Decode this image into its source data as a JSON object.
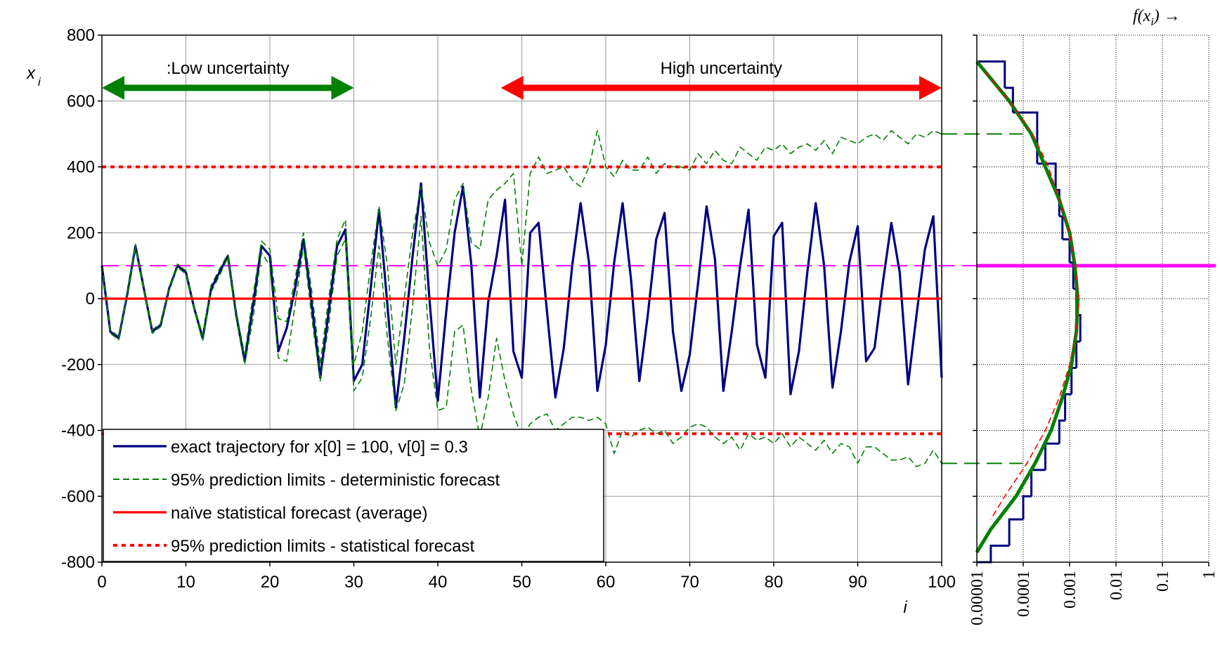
{
  "chart_data": [
    {
      "type": "line",
      "x": [
        0,
        1,
        2,
        3,
        4,
        5,
        6,
        7,
        8,
        9,
        10,
        11,
        12,
        13,
        14,
        15,
        16,
        17,
        18,
        19,
        20,
        21,
        22,
        23,
        24,
        25,
        26,
        27,
        28,
        29,
        30,
        31,
        32,
        33,
        34,
        35,
        36,
        37,
        38,
        39,
        40,
        41,
        42,
        43,
        44,
        45,
        46,
        47,
        48,
        49,
        50,
        51,
        52,
        53,
        54,
        55,
        56,
        57,
        58,
        59,
        60,
        61,
        62,
        63,
        64,
        65,
        66,
        67,
        68,
        69,
        70,
        71,
        72,
        73,
        74,
        75,
        76,
        77,
        78,
        79,
        80,
        81,
        82,
        83,
        84,
        85,
        86,
        87,
        88,
        89,
        90,
        91,
        92,
        93,
        94,
        95,
        96,
        97,
        98,
        99,
        100
      ],
      "xlim": [
        0,
        100
      ],
      "xticks": [
        0,
        10,
        20,
        30,
        40,
        50,
        60,
        70,
        80,
        90,
        100
      ],
      "ylim": [
        -800,
        800
      ],
      "yticks": [
        -800,
        -600,
        -400,
        -200,
        0,
        200,
        400,
        600,
        800
      ],
      "grid": true,
      "legend": "lower left",
      "x_label": "i",
      "y_label": {
        "base": "x",
        "sub": "i"
      },
      "series": [
        {
          "name": "exact trajectory for x[0] = 100, v[0] = 0.3",
          "color": "#000080",
          "values": [
            100,
            -100,
            -120,
            10,
            160,
            30,
            -100,
            -80,
            30,
            100,
            80,
            -30,
            -120,
            30,
            80,
            130,
            -50,
            -190,
            -20,
            160,
            130,
            -160,
            -90,
            30,
            180,
            -20,
            -240,
            -40,
            160,
            210,
            -250,
            -200,
            30,
            270,
            -20,
            -330,
            -120,
            130,
            350,
            0,
            -310,
            -40,
            200,
            340,
            100,
            -300,
            -10,
            130,
            300,
            -160,
            -240,
            200,
            230,
            -40,
            -300,
            -150,
            100,
            290,
            110,
            -280,
            -140,
            110,
            290,
            60,
            -250,
            -50,
            180,
            260,
            -100,
            -280,
            -170,
            50,
            280,
            120,
            -280,
            -100,
            100,
            270,
            -140,
            -240,
            190,
            230,
            -290,
            -160,
            80,
            290,
            100,
            -270,
            -100,
            110,
            220,
            -190,
            -150,
            50,
            230,
            80,
            -260,
            -50,
            150,
            250,
            -240
          ]
        },
        {
          "name": "95% prediction limits - deterministic forecast",
          "color": "#008000",
          "dash": "dashed",
          "values": [
            100,
            -95,
            -115,
            15,
            165,
            35,
            -95,
            -75,
            35,
            105,
            85,
            -25,
            -110,
            40,
            90,
            135,
            -40,
            -170,
            10,
            175,
            150,
            -60,
            -70,
            60,
            200,
            20,
            -200,
            0,
            180,
            240,
            -200,
            -100,
            100,
            280,
            100,
            -200,
            0,
            200,
            340,
            170,
            100,
            150,
            300,
            350,
            170,
            150,
            300,
            330,
            350,
            380,
            100,
            380,
            430,
            380,
            390,
            400,
            360,
            340,
            400,
            510,
            400,
            370,
            420,
            390,
            390,
            430,
            380,
            410,
            400,
            400,
            390,
            440,
            410,
            450,
            420,
            410,
            460,
            440,
            420,
            460,
            450,
            470,
            440,
            460,
            470,
            450,
            480,
            440,
            490,
            480,
            470,
            490,
            500,
            480,
            510,
            490,
            470,
            500,
            490,
            510,
            500
          ],
          "values_lower": [
            100,
            -105,
            -125,
            5,
            155,
            25,
            -105,
            -85,
            25,
            95,
            75,
            -35,
            -130,
            20,
            70,
            125,
            -60,
            -200,
            -60,
            140,
            100,
            -180,
            -190,
            -20,
            160,
            -60,
            -250,
            -80,
            130,
            180,
            -280,
            -240,
            -60,
            160,
            -120,
            -340,
            -260,
            -20,
            250,
            -150,
            -340,
            -330,
            -100,
            -80,
            -280,
            -420,
            -300,
            -120,
            -250,
            -350,
            -420,
            -380,
            -360,
            -350,
            -400,
            -380,
            -360,
            -360,
            -370,
            -360,
            -380,
            -470,
            -400,
            -420,
            -400,
            -390,
            -410,
            -400,
            -440,
            -420,
            -390,
            -380,
            -390,
            -420,
            -440,
            -420,
            -460,
            -410,
            -430,
            -420,
            -440,
            -410,
            -450,
            -420,
            -440,
            -460,
            -430,
            -470,
            -440,
            -450,
            -500,
            -450,
            -450,
            -470,
            -490,
            -490,
            -480,
            -510,
            -500,
            -460,
            -500
          ]
        },
        {
          "name": "naïve statistical forecast (average)",
          "color": "#ff0000",
          "x": [
            0,
            100
          ],
          "values": [
            0,
            0
          ]
        },
        {
          "name": "95% prediction limits - statistical forecast",
          "color": "#ff0000",
          "dash": "dotted",
          "x": [
            0,
            100
          ],
          "values": [
            400,
            400
          ],
          "values_lower": [
            -410,
            -410
          ]
        }
      ],
      "reference_line": {
        "value": 100,
        "color": "#ff00ff"
      },
      "annotations": [
        {
          "text": ":Low uncertainty",
          "x": [
            0,
            30
          ],
          "y": 640,
          "color": "#008000"
        },
        {
          "text": "High uncertainty",
          "x": [
            47.5,
            100
          ],
          "y": 640,
          "color": "#ff0000"
        }
      ]
    },
    {
      "type": "histogram",
      "xscale": "log",
      "xlim": [
        1e-05,
        1
      ],
      "xticks": [
        1e-05,
        0.0001,
        0.001,
        0.01,
        0.1,
        1
      ],
      "ylim": [
        -800,
        800
      ],
      "x_label": {
        "pre": "f(x",
        "sub": "i",
        "post": ") →"
      },
      "color": "#000080",
      "bins": [
        720,
        640,
        565,
        490,
        410,
        330,
        250,
        180,
        110,
        30,
        -50,
        -130,
        -210,
        -290,
        -370,
        -440,
        -520,
        -600,
        -670,
        -750,
        -800
      ],
      "values": [
        4e-05,
        6e-05,
        0.0002,
        0.0002,
        0.0005,
        0.0006,
        0.0007,
        0.001,
        0.0012,
        0.0014,
        0.0017,
        0.0014,
        0.0011,
        0.0008,
        0.0006,
        0.0003,
        0.00015,
        0.0001,
        5e-05,
        2e-05
      ],
      "series": [
        {
          "color": "#008000",
          "y": [
            720,
            600,
            500,
            400,
            300,
            200,
            100,
            0,
            -100,
            -200,
            -300,
            -400,
            -500,
            -600,
            -700,
            -770
          ],
          "values": [
            1e-05,
            5e-05,
            0.00015,
            0.0003,
            0.0006,
            0.001,
            0.0013,
            0.0015,
            0.0014,
            0.0011,
            0.0007,
            0.0004,
            0.00018,
            7e-05,
            2e-05,
            1e-05
          ]
        },
        {
          "color": "#ff0000",
          "dash": "dashed",
          "y": [
            690,
            600,
            500,
            400,
            300,
            200,
            100,
            0,
            -100,
            -200,
            -300,
            -400,
            -500,
            -600,
            -670
          ],
          "values": [
            1.5e-05,
            5e-05,
            0.00016,
            0.00035,
            0.0006,
            0.001,
            0.0013,
            0.0016,
            0.0014,
            0.001,
            0.0006,
            0.0003,
            0.00012,
            4e-05,
            2e-05
          ]
        }
      ],
      "reference_line": {
        "value": 100,
        "color": "#ff00ff"
      }
    }
  ]
}
